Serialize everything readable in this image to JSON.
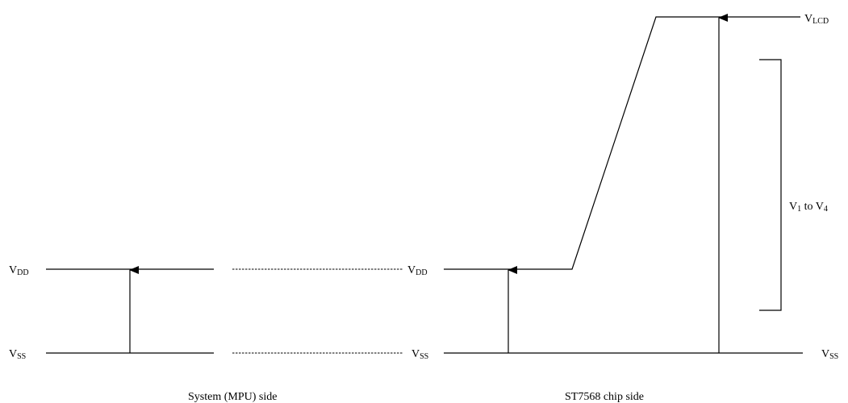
{
  "labels": {
    "left_vdd": {
      "main": "V",
      "sub": "DD"
    },
    "left_vss": {
      "main": "V",
      "sub": "SS"
    },
    "mid_vdd": {
      "main": "V",
      "sub": "DD"
    },
    "mid_vss": {
      "main": "V",
      "sub": "SS"
    },
    "right_vss": {
      "main": "V",
      "sub": "SS"
    },
    "vlcd": {
      "main": "V",
      "sub": "LCD"
    },
    "range": {
      "v1": "V",
      "s1": "1",
      "to": " to ",
      "v4": "V",
      "s4": "4"
    }
  },
  "captions": {
    "system_side": "System (MPU) side",
    "chip_side": "ST7568 chip side"
  }
}
